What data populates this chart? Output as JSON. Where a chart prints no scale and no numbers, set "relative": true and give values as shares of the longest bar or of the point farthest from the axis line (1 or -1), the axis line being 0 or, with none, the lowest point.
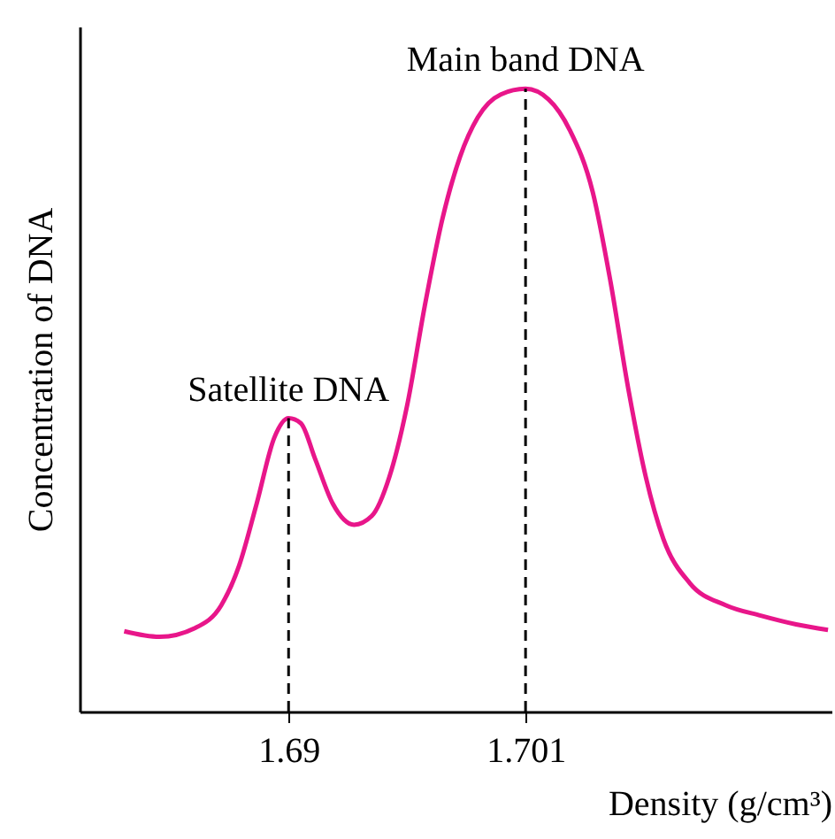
{
  "chart_data": {
    "type": "line",
    "relative": true,
    "xlabel": "Density (g/cm³)",
    "ylabel": "Concentration of DNA",
    "x": [
      1.68237,
      1.68401,
      1.68565,
      1.68688,
      1.6877,
      1.68852,
      1.68934,
      1.69,
      1.69057,
      1.69123,
      1.69205,
      1.69304,
      1.69386,
      1.69468,
      1.6955,
      1.69632,
      1.69714,
      1.69796,
      1.69878,
      1.69985,
      1.701,
      1.70207,
      1.70305,
      1.70412,
      1.70494,
      1.70576,
      1.70658,
      1.7074,
      1.70863,
      1.71028,
      1.71192,
      1.71356,
      1.71504
    ],
    "series": [
      {
        "color": "#e8168a",
        "values": [
          0.129,
          0.12,
          0.134,
          0.171,
          0.234,
          0.334,
          0.44,
          0.471,
          0.463,
          0.406,
          0.334,
          0.3,
          0.314,
          0.377,
          0.491,
          0.651,
          0.791,
          0.891,
          0.954,
          0.991,
          1,
          0.983,
          0.934,
          0.834,
          0.691,
          0.52,
          0.377,
          0.277,
          0.206,
          0.171,
          0.154,
          0.14,
          0.131
        ]
      }
    ],
    "xlim": [
      1.6803,
      1.7152
    ],
    "xticks": [
      1.69,
      1.701
    ],
    "ref_lines": [
      {
        "axis": "x",
        "value": 1.69,
        "line_style": "dashed"
      },
      {
        "axis": "x",
        "value": 1.701,
        "line_style": "dashed"
      }
    ],
    "annotations": [
      {
        "text": "Satellite DNA",
        "x": 1.69,
        "y": 0.471
      },
      {
        "text": "Main band DNA",
        "x": 1.701,
        "y": 1
      }
    ],
    "grid": false,
    "marker": "none",
    "line_style": "solid"
  }
}
